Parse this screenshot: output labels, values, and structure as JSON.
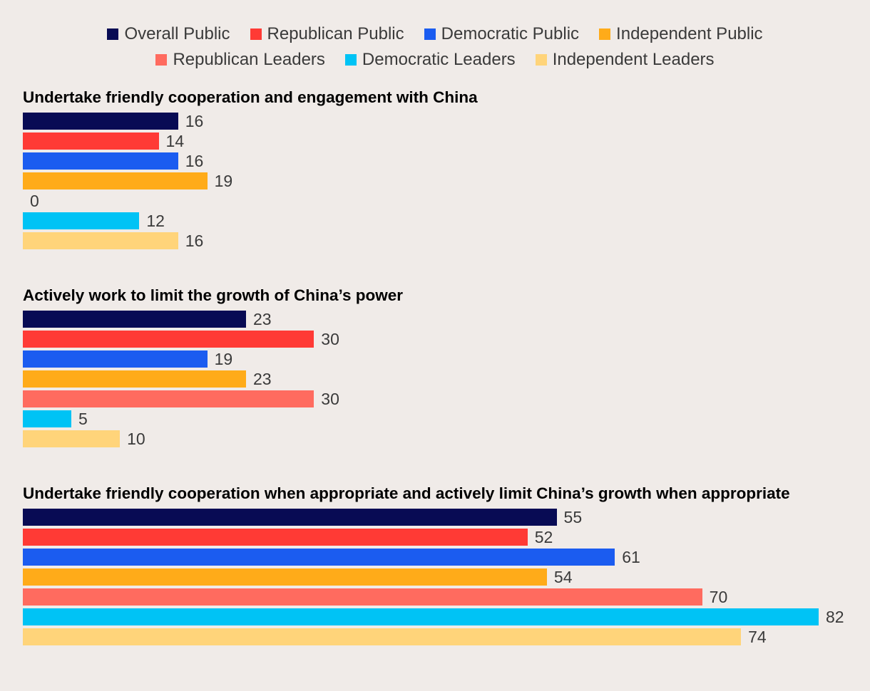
{
  "chart_data": {
    "type": "bar",
    "orientation": "horizontal",
    "legend_position": "top-center",
    "grid": false,
    "xlim": [
      0,
      82
    ],
    "series": [
      {
        "name": "Overall Public",
        "color": "#080b54"
      },
      {
        "name": "Republican Public",
        "color": "#ff3a35"
      },
      {
        "name": "Democratic Public",
        "color": "#1b5cf0"
      },
      {
        "name": "Independent Public",
        "color": "#ffab19"
      },
      {
        "name": "Republican Leaders",
        "color": "#ff6b5f"
      },
      {
        "name": "Democratic Leaders",
        "color": "#00c3f5"
      },
      {
        "name": "Independent Leaders",
        "color": "#ffd47a"
      }
    ],
    "panels": [
      {
        "title": "Undertake friendly cooperation and engagement with China",
        "values": [
          16,
          14,
          16,
          19,
          0,
          12,
          16
        ]
      },
      {
        "title": "Actively work to limit the growth of China’s power",
        "values": [
          23,
          30,
          19,
          23,
          30,
          5,
          10
        ]
      },
      {
        "title": "Undertake friendly cooperation when appropriate and actively limit China’s growth when appropriate",
        "values": [
          55,
          52,
          61,
          54,
          70,
          82,
          74
        ]
      }
    ]
  }
}
